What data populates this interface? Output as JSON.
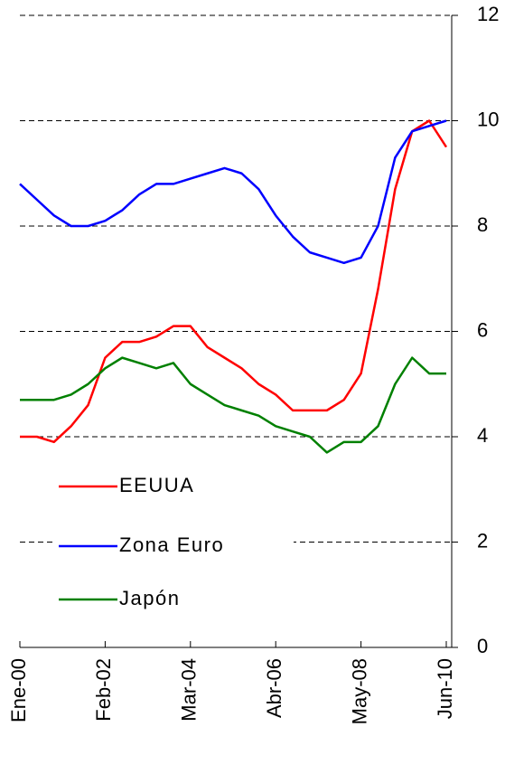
{
  "chart_data": {
    "type": "line",
    "categories": [
      "Ene-00",
      null,
      null,
      null,
      null,
      "Feb-02",
      null,
      null,
      null,
      null,
      "Mar-04",
      null,
      null,
      null,
      null,
      "Abr-06",
      null,
      null,
      null,
      null,
      "May-08",
      null,
      null,
      null,
      null,
      "Jun-10"
    ],
    "series": [
      {
        "name": "EEUUA",
        "color": "#ff0000",
        "values": [
          4.0,
          4.0,
          3.9,
          4.2,
          4.6,
          5.5,
          5.8,
          5.8,
          5.9,
          6.1,
          6.1,
          5.7,
          5.5,
          5.3,
          5.0,
          4.8,
          4.5,
          4.5,
          4.5,
          4.7,
          5.2,
          6.8,
          8.7,
          9.8,
          10.0,
          9.5
        ]
      },
      {
        "name": "Zona Euro",
        "color": "#0000ff",
        "values": [
          8.8,
          8.5,
          8.2,
          8.0,
          8.0,
          8.1,
          8.3,
          8.6,
          8.8,
          8.8,
          8.9,
          9.0,
          9.1,
          9.0,
          8.7,
          8.2,
          7.8,
          7.5,
          7.4,
          7.3,
          7.4,
          8.0,
          9.3,
          9.8,
          9.9,
          10.0
        ]
      },
      {
        "name": "Japón",
        "color": "#008000",
        "values": [
          4.7,
          4.7,
          4.7,
          4.8,
          5.0,
          5.3,
          5.5,
          5.4,
          5.3,
          5.4,
          5.0,
          4.8,
          4.6,
          4.5,
          4.4,
          4.2,
          4.1,
          4.0,
          3.7,
          3.9,
          3.9,
          4.2,
          5.0,
          5.5,
          5.2,
          5.2
        ]
      }
    ],
    "ylim": [
      0,
      12
    ],
    "yticks": [
      0,
      2,
      4,
      6,
      8,
      10,
      12
    ],
    "grid": true
  }
}
